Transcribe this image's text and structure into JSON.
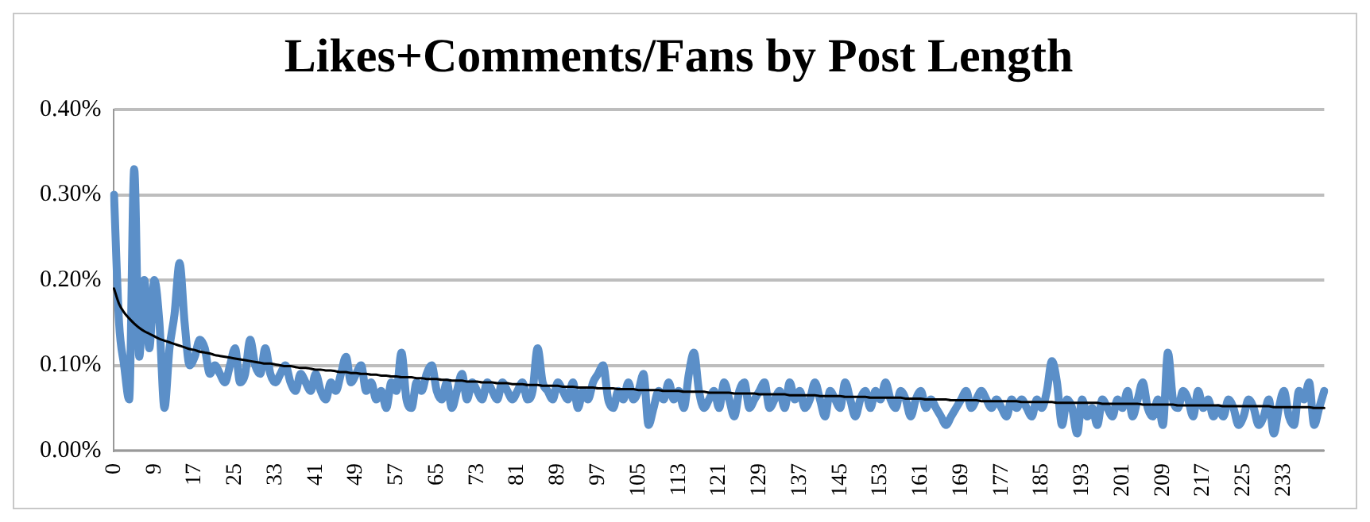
{
  "chart_data": {
    "type": "line",
    "title": "Likes+Comments/Fans by Post Length",
    "categories": [
      "0",
      null,
      null,
      null,
      null,
      null,
      null,
      null,
      "9",
      null,
      null,
      null,
      null,
      null,
      null,
      null,
      "17",
      null,
      null,
      null,
      null,
      null,
      null,
      null,
      "25",
      null,
      null,
      null,
      null,
      null,
      null,
      null,
      "33",
      null,
      null,
      null,
      null,
      null,
      null,
      null,
      "41",
      null,
      null,
      null,
      null,
      null,
      null,
      null,
      "49",
      null,
      null,
      null,
      null,
      null,
      null,
      null,
      "57",
      null,
      null,
      null,
      null,
      null,
      null,
      null,
      "65",
      null,
      null,
      null,
      null,
      null,
      null,
      null,
      "73",
      null,
      null,
      null,
      null,
      null,
      null,
      null,
      "81",
      null,
      null,
      null,
      null,
      null,
      null,
      null,
      "89",
      null,
      null,
      null,
      null,
      null,
      null,
      null,
      "97",
      null,
      null,
      null,
      null,
      null,
      null,
      null,
      "105",
      null,
      null,
      null,
      null,
      null,
      null,
      null,
      "113",
      null,
      null,
      null,
      null,
      null,
      null,
      null,
      "121",
      null,
      null,
      null,
      null,
      null,
      null,
      null,
      "129",
      null,
      null,
      null,
      null,
      null,
      null,
      null,
      "137",
      null,
      null,
      null,
      null,
      null,
      null,
      null,
      "145",
      null,
      null,
      null,
      null,
      null,
      null,
      null,
      "153",
      null,
      null,
      null,
      null,
      null,
      null,
      null,
      "161",
      null,
      null,
      null,
      null,
      null,
      null,
      null,
      "169",
      null,
      null,
      null,
      null,
      null,
      null,
      null,
      "177",
      null,
      null,
      null,
      null,
      null,
      null,
      null,
      "185",
      null,
      null,
      null,
      null,
      null,
      null,
      null,
      "193",
      null,
      null,
      null,
      null,
      null,
      null,
      null,
      "201",
      null,
      null,
      null,
      null,
      null,
      null,
      null,
      "209",
      null,
      null,
      null,
      null,
      null,
      null,
      null,
      "217",
      null,
      null,
      null,
      null,
      null,
      null,
      null,
      "225",
      null,
      null,
      null,
      null,
      null,
      null,
      null,
      "233",
      null,
      null,
      null,
      null,
      null,
      null,
      null,
      null
    ],
    "series": [
      {
        "color": "#5b8fc8",
        "values": [
          0.3,
          0.15,
          0.1,
          0.06,
          0.33,
          0.11,
          0.2,
          0.12,
          0.2,
          0.15,
          0.05,
          0.12,
          0.16,
          0.22,
          0.15,
          0.1,
          0.11,
          0.13,
          0.12,
          0.09,
          0.1,
          0.09,
          0.08,
          0.1,
          0.12,
          0.08,
          0.09,
          0.13,
          0.1,
          0.09,
          0.12,
          0.09,
          0.08,
          0.09,
          0.1,
          0.08,
          0.07,
          0.09,
          0.08,
          0.07,
          0.09,
          0.07,
          0.06,
          0.08,
          0.07,
          0.09,
          0.11,
          0.08,
          0.09,
          0.1,
          0.07,
          0.08,
          0.06,
          0.07,
          0.05,
          0.08,
          0.07,
          0.115,
          0.06,
          0.05,
          0.08,
          0.07,
          0.09,
          0.1,
          0.07,
          0.06,
          0.08,
          0.05,
          0.07,
          0.09,
          0.06,
          0.08,
          0.07,
          0.06,
          0.08,
          0.07,
          0.06,
          0.08,
          0.07,
          0.06,
          0.07,
          0.08,
          0.06,
          0.07,
          0.12,
          0.08,
          0.07,
          0.06,
          0.08,
          0.07,
          0.06,
          0.08,
          0.05,
          0.07,
          0.06,
          0.08,
          0.09,
          0.1,
          0.06,
          0.05,
          0.07,
          0.06,
          0.08,
          0.06,
          0.07,
          0.09,
          0.03,
          0.05,
          0.07,
          0.06,
          0.08,
          0.06,
          0.07,
          0.05,
          0.09,
          0.115,
          0.07,
          0.05,
          0.06,
          0.07,
          0.05,
          0.08,
          0.06,
          0.04,
          0.07,
          0.08,
          0.05,
          0.06,
          0.07,
          0.08,
          0.05,
          0.06,
          0.07,
          0.05,
          0.08,
          0.06,
          0.07,
          0.05,
          0.06,
          0.08,
          0.06,
          0.04,
          0.07,
          0.06,
          0.05,
          0.08,
          0.06,
          0.04,
          0.06,
          0.07,
          0.05,
          0.07,
          0.06,
          0.08,
          0.06,
          0.05,
          0.07,
          0.06,
          0.04,
          0.06,
          0.07,
          0.05,
          0.06,
          0.05,
          0.04,
          0.03,
          0.04,
          0.05,
          0.06,
          0.07,
          0.05,
          0.06,
          0.07,
          0.06,
          0.05,
          0.06,
          0.05,
          0.04,
          0.06,
          0.05,
          0.06,
          0.05,
          0.04,
          0.06,
          0.05,
          0.07,
          0.105,
          0.08,
          0.03,
          0.06,
          0.05,
          0.02,
          0.06,
          0.04,
          0.05,
          0.03,
          0.06,
          0.05,
          0.04,
          0.06,
          0.05,
          0.07,
          0.04,
          0.06,
          0.08,
          0.05,
          0.04,
          0.06,
          0.03,
          0.115,
          0.06,
          0.05,
          0.07,
          0.06,
          0.04,
          0.07,
          0.05,
          0.06,
          0.04,
          0.05,
          0.04,
          0.06,
          0.05,
          0.03,
          0.04,
          0.06,
          0.05,
          0.03,
          0.04,
          0.06,
          0.02,
          0.05,
          0.07,
          0.04,
          0.03,
          0.07,
          0.06,
          0.08,
          0.03,
          0.05,
          0.07
        ]
      },
      {
        "color": "#000000",
        "values": [
          0.19,
          0.172,
          0.162,
          0.155,
          0.149,
          0.144,
          0.14,
          0.137,
          0.134,
          0.131,
          0.129,
          0.127,
          0.125,
          0.123,
          0.121,
          0.119,
          0.118,
          0.116,
          0.115,
          0.114,
          0.112,
          0.111,
          0.11,
          0.109,
          0.108,
          0.107,
          0.106,
          0.105,
          0.104,
          0.103,
          0.102,
          0.102,
          0.101,
          0.1,
          0.099,
          0.099,
          0.098,
          0.097,
          0.097,
          0.096,
          0.095,
          0.095,
          0.094,
          0.094,
          0.093,
          0.092,
          0.092,
          0.091,
          0.091,
          0.09,
          0.09,
          0.089,
          0.089,
          0.088,
          0.088,
          0.087,
          0.087,
          0.086,
          0.086,
          0.086,
          0.085,
          0.085,
          0.084,
          0.084,
          0.084,
          0.083,
          0.083,
          0.082,
          0.082,
          0.082,
          0.081,
          0.081,
          0.081,
          0.08,
          0.08,
          0.08,
          0.079,
          0.079,
          0.079,
          0.078,
          0.078,
          0.078,
          0.077,
          0.077,
          0.077,
          0.076,
          0.076,
          0.076,
          0.076,
          0.075,
          0.075,
          0.075,
          0.074,
          0.074,
          0.074,
          0.074,
          0.073,
          0.073,
          0.073,
          0.073,
          0.072,
          0.072,
          0.072,
          0.072,
          0.071,
          0.071,
          0.071,
          0.071,
          0.071,
          0.07,
          0.07,
          0.07,
          0.07,
          0.069,
          0.069,
          0.069,
          0.069,
          0.069,
          0.068,
          0.068,
          0.068,
          0.068,
          0.068,
          0.067,
          0.067,
          0.067,
          0.067,
          0.067,
          0.066,
          0.066,
          0.066,
          0.066,
          0.066,
          0.066,
          0.065,
          0.065,
          0.065,
          0.065,
          0.065,
          0.065,
          0.064,
          0.064,
          0.064,
          0.064,
          0.064,
          0.063,
          0.063,
          0.063,
          0.063,
          0.063,
          0.062,
          0.062,
          0.062,
          0.062,
          0.062,
          0.062,
          0.062,
          0.061,
          0.061,
          0.061,
          0.061,
          0.06,
          0.06,
          0.06,
          0.06,
          0.06,
          0.059,
          0.059,
          0.059,
          0.059,
          0.059,
          0.059,
          0.058,
          0.058,
          0.058,
          0.058,
          0.058,
          0.058,
          0.058,
          0.058,
          0.057,
          0.057,
          0.057,
          0.057,
          0.057,
          0.057,
          0.057,
          0.056,
          0.056,
          0.056,
          0.056,
          0.056,
          0.056,
          0.056,
          0.056,
          0.056,
          0.055,
          0.055,
          0.055,
          0.055,
          0.055,
          0.055,
          0.055,
          0.055,
          0.054,
          0.054,
          0.054,
          0.054,
          0.054,
          0.054,
          0.054,
          0.053,
          0.053,
          0.053,
          0.053,
          0.053,
          0.053,
          0.053,
          0.053,
          0.053,
          0.052,
          0.052,
          0.052,
          0.052,
          0.052,
          0.052,
          0.052,
          0.052,
          0.052,
          0.052,
          0.051,
          0.051,
          0.051,
          0.051,
          0.051,
          0.051,
          0.051,
          0.051,
          0.05,
          0.05,
          0.05
        ]
      }
    ],
    "ylim": [
      0,
      0.4
    ],
    "yticks": [
      {
        "value": 0,
        "label": "0.00%"
      },
      {
        "value": 0.1,
        "label": "0.10%"
      },
      {
        "value": 0.2,
        "label": "0.20%"
      },
      {
        "value": 0.3,
        "label": "0.30%"
      },
      {
        "value": 0.4,
        "label": "0.40%"
      }
    ],
    "grid": "y",
    "legend": false,
    "marker": "none",
    "line_style": "solid"
  }
}
